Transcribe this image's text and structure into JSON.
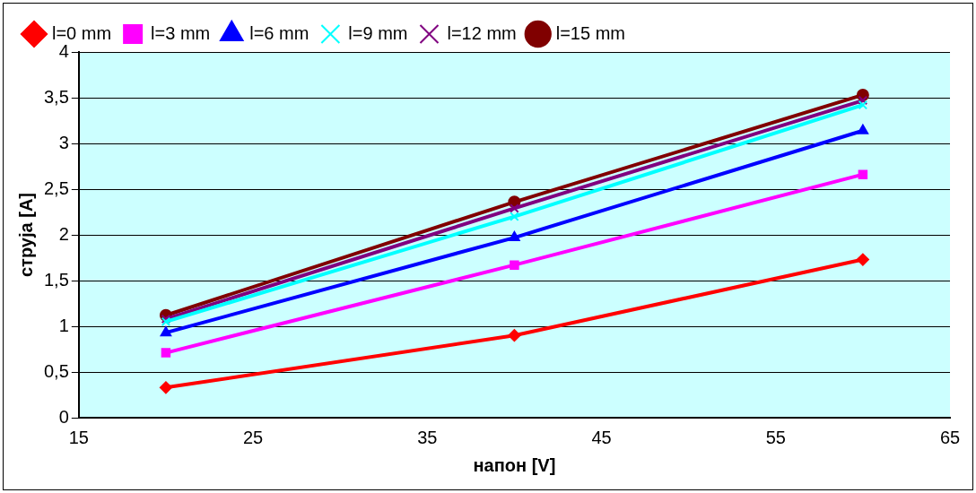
{
  "chart_data": {
    "type": "line",
    "xlabel": "напон [V]",
    "ylabel": "струја [A]",
    "x": [
      20,
      40,
      60
    ],
    "series": [
      {
        "name": "l=0 mm",
        "color": "#ff0000",
        "marker": "diamond",
        "values": [
          0.33,
          0.9,
          1.73
        ]
      },
      {
        "name": "l=3 mm",
        "color": "#ff00ff",
        "marker": "square",
        "values": [
          0.71,
          1.67,
          2.66
        ]
      },
      {
        "name": "l=6 mm",
        "color": "#0000ff",
        "marker": "triangle",
        "values": [
          0.93,
          1.97,
          3.14
        ]
      },
      {
        "name": "l=9 mm",
        "color": "#00ffff",
        "marker": "cross",
        "values": [
          1.05,
          2.2,
          3.42
        ]
      },
      {
        "name": "l=12 mm",
        "color": "#800080",
        "marker": "cross",
        "values": [
          1.08,
          2.29,
          3.47
        ]
      },
      {
        "name": "l=15 mm",
        "color": "#800000",
        "marker": "circle",
        "values": [
          1.12,
          2.36,
          3.53
        ]
      }
    ],
    "xlim": [
      15,
      65
    ],
    "xticks": [
      15,
      25,
      35,
      45,
      55,
      65
    ],
    "ylim": [
      0,
      4
    ],
    "yticks": [
      0,
      {
        "value": 0.5,
        "label": "0,5"
      },
      1,
      {
        "value": 1.5,
        "label": "1,5"
      },
      2,
      {
        "value": 2.5,
        "label": "2,5"
      },
      3,
      {
        "value": 3.5,
        "label": "3,5"
      },
      4
    ],
    "grid": "y",
    "legend": "top left",
    "line_style": "solid"
  }
}
